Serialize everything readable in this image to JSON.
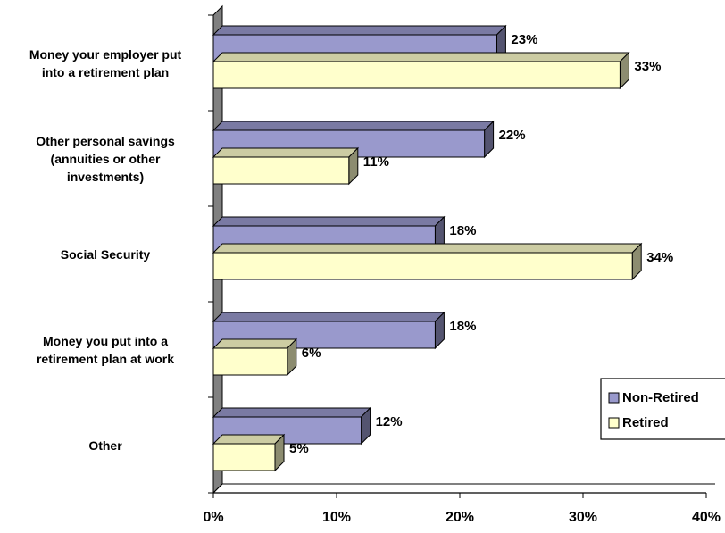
{
  "chart_data": {
    "type": "bar",
    "orientation": "horizontal",
    "three_d": true,
    "categories": [
      [
        "Money your employer put",
        "into a retirement plan"
      ],
      [
        "Other personal savings",
        "(annuities or other",
        "investments)"
      ],
      [
        "Social Security"
      ],
      [
        "Money you put into a",
        "retirement plan at work"
      ],
      [
        "Other"
      ]
    ],
    "series": [
      {
        "name": "Non-Retired",
        "values": [
          23,
          22,
          18,
          18,
          12
        ],
        "value_labels": [
          "23%",
          "22%",
          "18%",
          "18%",
          "12%"
        ],
        "color": "#9999CC"
      },
      {
        "name": "Retired",
        "values": [
          33,
          11,
          34,
          6,
          5
        ],
        "value_labels": [
          "33%",
          "11%",
          "34%",
          "6%",
          "5%"
        ],
        "color": "#FFFFCC"
      }
    ],
    "xlim": [
      0,
      40
    ],
    "x_ticks": [
      0,
      10,
      20,
      30,
      40
    ],
    "x_tick_labels": [
      "0%",
      "10%",
      "20%",
      "30%",
      "40%"
    ],
    "xlabel": "",
    "ylabel": "",
    "title": "",
    "grid": false,
    "legend_position": "right",
    "wall_color": "#808080"
  }
}
